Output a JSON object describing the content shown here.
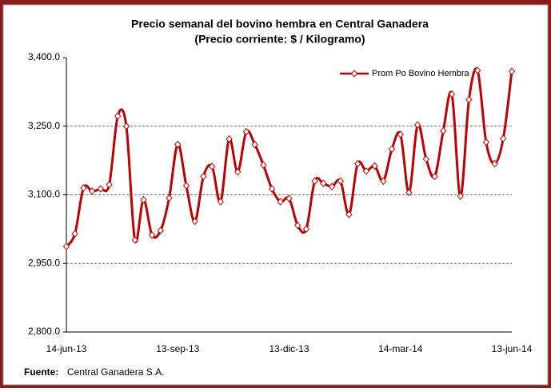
{
  "chart_data": {
    "type": "line",
    "title": "Precio semanal del bovino  hembra en Central Ganadera",
    "subtitle": "(Precio corriente: $ / Kilogramo)",
    "categories": [
      "14-jun-13",
      null,
      null,
      null,
      null,
      null,
      null,
      null,
      null,
      null,
      null,
      null,
      null,
      "13-sep-13",
      null,
      null,
      null,
      null,
      null,
      null,
      null,
      null,
      null,
      null,
      null,
      null,
      "13-dic-13",
      null,
      null,
      null,
      null,
      null,
      null,
      null,
      null,
      null,
      null,
      null,
      null,
      "14-mar-14",
      null,
      null,
      null,
      null,
      null,
      null,
      null,
      null,
      null,
      null,
      null,
      null,
      "13-jun-14"
    ],
    "series": [
      {
        "name": "Prom Po Bovino Hembra",
        "color": "#c00000",
        "values": [
          2987,
          3015,
          3115,
          3108,
          3113,
          3122,
          3272,
          3250,
          3001,
          3089,
          3012,
          3022,
          3093,
          3210,
          3120,
          3042,
          3140,
          3162,
          3085,
          3222,
          3150,
          3238,
          3210,
          3165,
          3113,
          3085,
          3092,
          3033,
          3025,
          3130,
          3125,
          3118,
          3130,
          3057,
          3168,
          3152,
          3163,
          3130,
          3200,
          3232,
          3105,
          3253,
          3178,
          3140,
          3240,
          3320,
          3097,
          3308,
          3372,
          3215,
          3168,
          3223,
          3370
        ]
      }
    ],
    "ylim": [
      2800,
      3400
    ],
    "yticks": [
      {
        "value": 2800,
        "label": "2,800.0"
      },
      {
        "value": 2950,
        "label": "2,950.0"
      },
      {
        "value": 3100,
        "label": "3,100.0"
      },
      {
        "value": 3250,
        "label": "3,250.0"
      },
      {
        "value": 3400,
        "label": "3,400.0"
      }
    ],
    "grid": true,
    "legend": "top-right",
    "source_label": "Fuente:",
    "source": "Central Ganadera S.A."
  }
}
